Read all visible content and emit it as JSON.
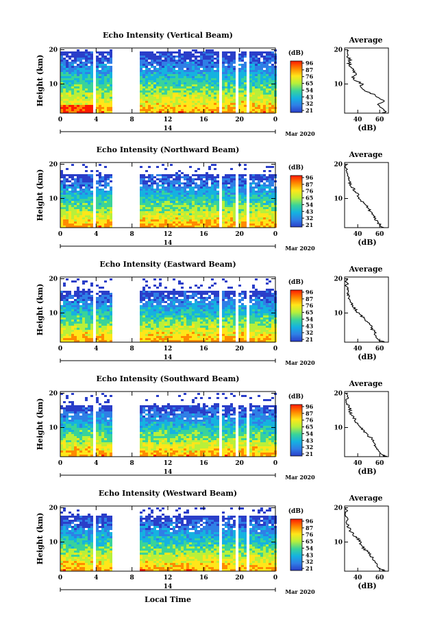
{
  "chart_data": {
    "type": "heatmap",
    "shared": {
      "xlabel": "Local Time",
      "x_ticks": [
        "0",
        "4",
        "8",
        "12",
        "16",
        "20",
        "0"
      ],
      "x_range_hours": [
        0,
        24
      ],
      "date_label": "14",
      "month_label": "Mar 2020",
      "ylabel": "Height (km)",
      "y_ticks": [
        "20",
        "10"
      ],
      "y_range_km": [
        1.5,
        20.5
      ],
      "colorbar_unit": "(dB)",
      "colorbar_ticks": [
        "96",
        "87",
        "76",
        "65",
        "54",
        "43",
        "32",
        "21"
      ],
      "colorbar_colors": [
        "#ff1a00",
        "#ff8a00",
        "#ffe61a",
        "#b8f03a",
        "#39d39a",
        "#15b2e0",
        "#2f7fe6",
        "#2a3ec9"
      ],
      "data_gaps_hours": [
        [
          3.4,
          3.8
        ],
        [
          5.6,
          8.6
        ],
        [
          17.7,
          18.0
        ],
        [
          19.3,
          19.7
        ],
        [
          20.5,
          20.8
        ]
      ],
      "profile_title": "Average",
      "profile_xlabel": "(dB)",
      "profile_x_ticks": [
        "40",
        "60"
      ],
      "profile_x_range": [
        28,
        68
      ],
      "profile_y_ticks": [
        "20",
        "10"
      ]
    },
    "panels": [
      {
        "title": "Echo Intensity (Vertical Beam)",
        "top_km": 19.5,
        "profile": {
          "height_km": [
            1.5,
            2,
            3,
            4,
            5,
            6,
            7,
            8,
            9,
            10,
            11,
            12,
            13,
            14,
            15,
            16,
            17,
            18,
            19,
            20
          ],
          "db": [
            62,
            66,
            62,
            58,
            64,
            58,
            54,
            46,
            42,
            44,
            38,
            36,
            38,
            36,
            34,
            32,
            33,
            31,
            32,
            30
          ]
        }
      },
      {
        "title": "Echo Intensity (Northward Beam)",
        "top_km": 17.5,
        "profile": {
          "height_km": [
            1.5,
            2,
            3,
            4,
            5,
            6,
            7,
            8,
            9,
            10,
            11,
            12,
            13,
            14,
            15,
            16,
            17,
            18,
            19,
            20
          ],
          "db": [
            64,
            62,
            58,
            56,
            54,
            52,
            50,
            48,
            44,
            42,
            40,
            38,
            36,
            34,
            32,
            31,
            30,
            30,
            29,
            29
          ]
        }
      },
      {
        "title": "Echo Intensity (Eastward Beam)",
        "top_km": 17.0,
        "profile": {
          "height_km": [
            1.5,
            2,
            3,
            4,
            5,
            6,
            7,
            8,
            9,
            10,
            11,
            12,
            13,
            14,
            15,
            16,
            17,
            18,
            19,
            20
          ],
          "db": [
            64,
            60,
            58,
            56,
            54,
            52,
            50,
            46,
            44,
            40,
            38,
            36,
            34,
            33,
            32,
            31,
            30,
            30,
            30,
            29
          ]
        }
      },
      {
        "title": "Echo Intensity (Southward Beam)",
        "top_km": 17.0,
        "profile": {
          "height_km": [
            1.5,
            2,
            3,
            4,
            5,
            6,
            7,
            8,
            9,
            10,
            11,
            12,
            13,
            14,
            15,
            16,
            17,
            18,
            19,
            20
          ],
          "db": [
            66,
            62,
            60,
            58,
            56,
            54,
            52,
            48,
            46,
            42,
            40,
            38,
            36,
            34,
            33,
            32,
            31,
            30,
            30,
            29
          ]
        }
      },
      {
        "title": "Echo Intensity (Westward Beam)",
        "top_km": 18.0,
        "profile": {
          "height_km": [
            1.5,
            2,
            3,
            4,
            5,
            6,
            7,
            8,
            9,
            10,
            11,
            12,
            13,
            14,
            15,
            16,
            17,
            18,
            19,
            20
          ],
          "db": [
            64,
            62,
            58,
            56,
            54,
            52,
            50,
            46,
            44,
            42,
            40,
            36,
            34,
            32,
            31,
            30,
            30,
            29,
            30,
            29
          ]
        }
      }
    ]
  }
}
